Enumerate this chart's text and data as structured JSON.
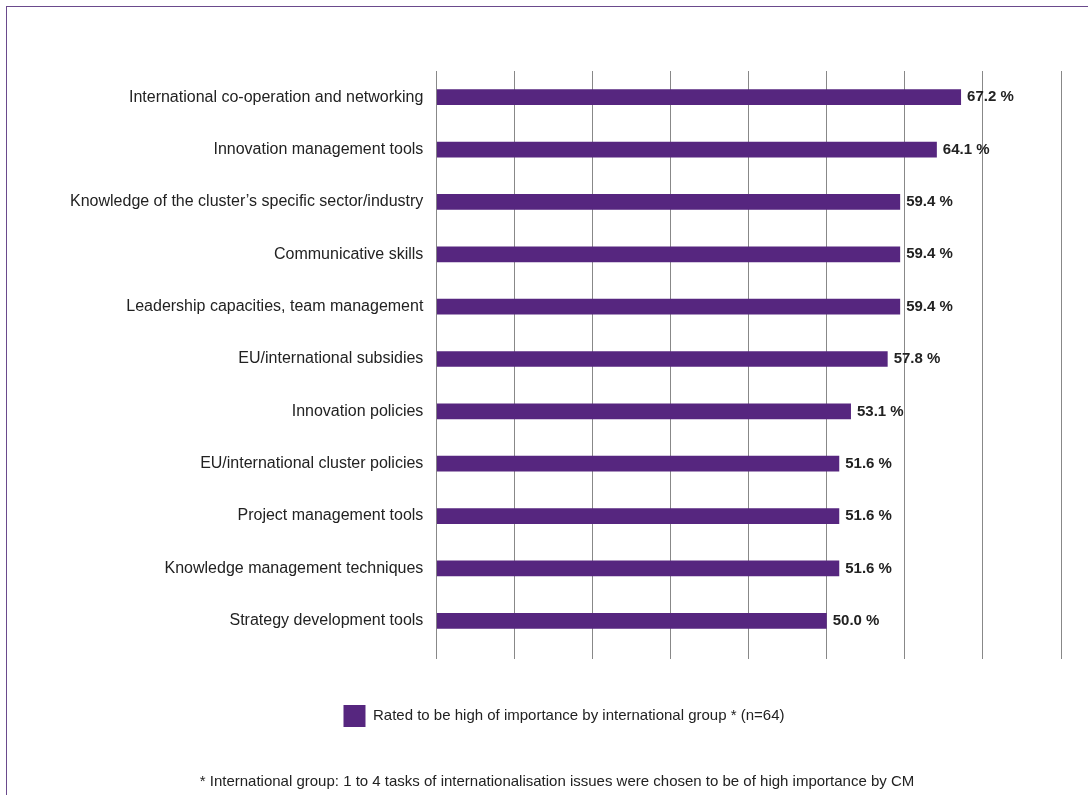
{
  "chart_data": {
    "type": "bar",
    "orientation": "horizontal",
    "categories": [
      "International co-operation and networking",
      "Innovation management tools",
      "Knowledge of the cluster’s specific sector/industry",
      "Communicative skills",
      "Leadership capacities, team management",
      "EU/international subsidies",
      "Innovation policies",
      "EU/international cluster policies",
      "Project management tools",
      "Knowledge management techniques",
      "Strategy development tools"
    ],
    "series": [
      {
        "name": "Rated to be high of importance by international group * (n=64)",
        "color": "#56267f",
        "values": [
          67.2,
          64.1,
          59.4,
          59.4,
          59.4,
          57.8,
          53.1,
          51.6,
          51.6,
          51.6,
          50.0
        ],
        "value_labels": [
          "67.2 %",
          "64.1 %",
          "59.4 %",
          "59.4 %",
          "59.4 %",
          "57.8 %",
          "53.1 %",
          "51.6 %",
          "51.6 %",
          "51.6 %",
          "50.0 %"
        ]
      }
    ],
    "xlim": [
      0,
      80
    ],
    "xticks": [
      {
        "value": 0,
        "label": null
      },
      {
        "value": 10,
        "label": null
      },
      {
        "value": 20,
        "label": null
      },
      {
        "value": 30,
        "label": null
      },
      {
        "value": 40,
        "label": null
      },
      {
        "value": 50,
        "label": null
      },
      {
        "value": 60,
        "label": null
      },
      {
        "value": 70,
        "label": null
      },
      {
        "value": 80,
        "label": null
      }
    ],
    "tick_labels": "y",
    "grid": "x",
    "legend": "bottom",
    "annotations": [
      "* International group: 1 to 4 tasks of internationalisation issues were chosen to be of high importance by CM"
    ]
  }
}
